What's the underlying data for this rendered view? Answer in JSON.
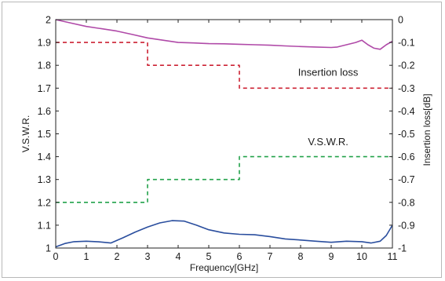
{
  "chart_data": {
    "type": "line",
    "title": "",
    "xlabel": "Frequency[GHz]",
    "ylabel_left": "V.S.W.R.",
    "ylabel_right": "Insertion loss[dB]",
    "xlim": [
      0,
      11
    ],
    "ylim_left": [
      1,
      2
    ],
    "ylim_right": [
      -1,
      0
    ],
    "x_ticks": [
      "0",
      "1",
      "2",
      "3",
      "4",
      "5",
      "6",
      "7",
      "8",
      "9",
      "10",
      "11"
    ],
    "y_left_ticks": [
      "1",
      "1.1",
      "1.2",
      "1.3",
      "1.4",
      "1.5",
      "1.6",
      "1.7",
      "1.8",
      "1.9",
      "2"
    ],
    "y_right_ticks": [
      "-1",
      "-0.9",
      "-0.8",
      "-0.7",
      "-0.6",
      "-0.5",
      "-0.4",
      "-0.3",
      "-0.2",
      "-0.1",
      "0"
    ],
    "grid": false,
    "colors": {
      "insertion_measured": "#b04aa8",
      "insertion_spec": "#cc2233",
      "vswr_spec": "#22a24a",
      "vswr_measured": "#2a4e9e"
    },
    "annotations": {
      "insertion": "Insertion loss",
      "vswr": "V.S.W.R."
    },
    "series": [
      {
        "key": "insertion_measured",
        "axis": "right",
        "style": "solid",
        "x": [
          0,
          0.5,
          1,
          1.5,
          2,
          2.5,
          3,
          3.5,
          4,
          4.5,
          5,
          5.5,
          6,
          6.5,
          7,
          7.5,
          8,
          8.5,
          9,
          9.2,
          9.5,
          9.8,
          10,
          10.2,
          10.4,
          10.6,
          10.8,
          11
        ],
        "y": [
          0,
          -0.015,
          -0.03,
          -0.04,
          -0.05,
          -0.065,
          -0.08,
          -0.09,
          -0.1,
          -0.102,
          -0.105,
          -0.106,
          -0.108,
          -0.11,
          -0.112,
          -0.115,
          -0.118,
          -0.12,
          -0.122,
          -0.12,
          -0.11,
          -0.1,
          -0.09,
          -0.11,
          -0.125,
          -0.13,
          -0.11,
          -0.095
        ]
      },
      {
        "key": "insertion_spec",
        "axis": "right",
        "style": "dashed",
        "x": [
          0,
          3,
          3,
          6,
          6,
          11
        ],
        "y": [
          -0.1,
          -0.1,
          -0.2,
          -0.2,
          -0.3,
          -0.3
        ]
      },
      {
        "key": "vswr_spec",
        "axis": "left",
        "style": "dashed",
        "x": [
          0,
          3,
          3,
          6,
          6,
          11
        ],
        "y": [
          1.2,
          1.2,
          1.3,
          1.3,
          1.4,
          1.4
        ]
      },
      {
        "key": "vswr_measured",
        "axis": "left",
        "style": "solid",
        "x": [
          0,
          0.3,
          0.6,
          1,
          1.4,
          1.8,
          2.2,
          2.6,
          3,
          3.4,
          3.8,
          4.2,
          4.6,
          5,
          5.5,
          6,
          6.5,
          7,
          7.5,
          8,
          8.5,
          9,
          9.5,
          10,
          10.3,
          10.6,
          10.8,
          11
        ],
        "y": [
          1.005,
          1.02,
          1.028,
          1.03,
          1.027,
          1.022,
          1.045,
          1.07,
          1.092,
          1.11,
          1.12,
          1.118,
          1.1,
          1.08,
          1.066,
          1.06,
          1.058,
          1.05,
          1.04,
          1.035,
          1.03,
          1.025,
          1.03,
          1.028,
          1.022,
          1.03,
          1.055,
          1.1
        ]
      }
    ]
  }
}
